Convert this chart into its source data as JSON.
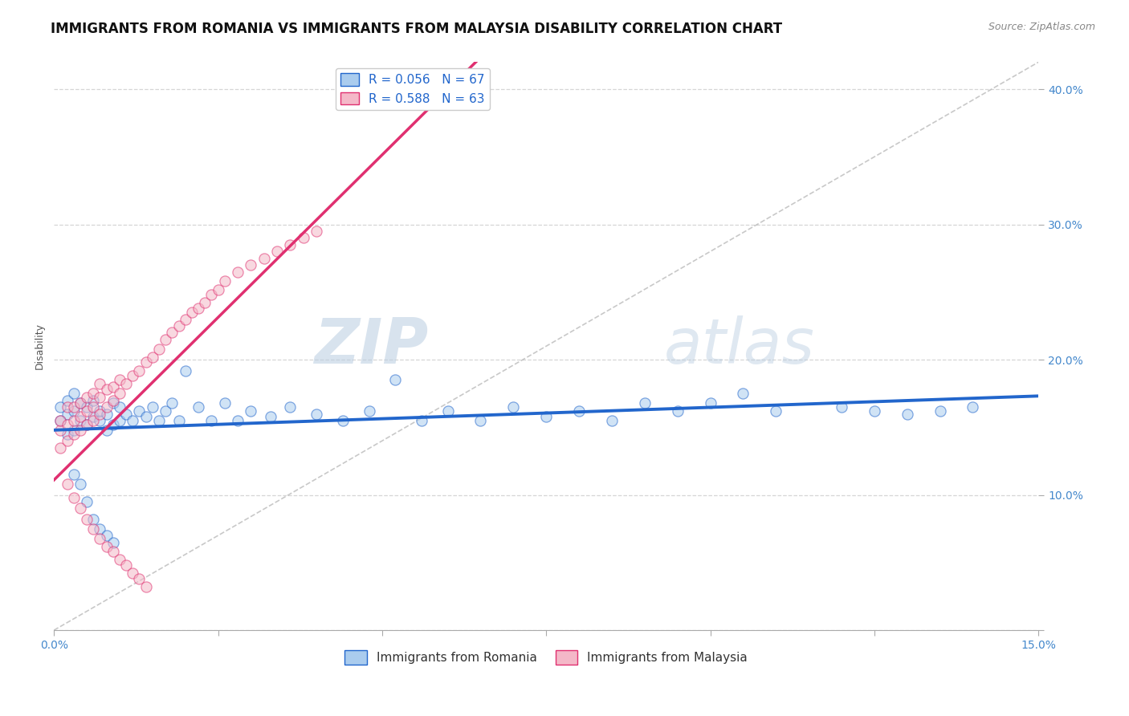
{
  "title": "IMMIGRANTS FROM ROMANIA VS IMMIGRANTS FROM MALAYSIA DISABILITY CORRELATION CHART",
  "source_text": "Source: ZipAtlas.com",
  "ylabel": "Disability",
  "legend_romania": "Immigrants from Romania",
  "legend_malaysia": "Immigrants from Malaysia",
  "r_romania": 0.056,
  "n_romania": 67,
  "r_malaysia": 0.588,
  "n_malaysia": 63,
  "color_romania": "#aaccee",
  "color_malaysia": "#f4b8c8",
  "line_color_romania": "#2266cc",
  "line_color_malaysia": "#e03070",
  "xlim": [
    0.0,
    0.15
  ],
  "ylim": [
    0.0,
    0.42
  ],
  "xticks": [
    0.0,
    0.025,
    0.05,
    0.075,
    0.1,
    0.125,
    0.15
  ],
  "xticklabels": [
    "0.0%",
    "",
    "",
    "",
    "",
    "",
    ""
  ],
  "yticks": [
    0.0,
    0.1,
    0.2,
    0.3,
    0.4
  ],
  "yticklabels": [
    "",
    "10.0%",
    "20.0%",
    "30.0%",
    "40.0%"
  ],
  "title_fontsize": 12,
  "axis_label_fontsize": 9,
  "tick_fontsize": 10,
  "legend_fontsize": 11,
  "watermark": "ZIPAtlas",
  "watermark_color": "#c5d8ea",
  "romania_x": [
    0.001,
    0.001,
    0.002,
    0.002,
    0.002,
    0.003,
    0.003,
    0.003,
    0.004,
    0.004,
    0.005,
    0.005,
    0.006,
    0.006,
    0.007,
    0.007,
    0.008,
    0.008,
    0.009,
    0.009,
    0.01,
    0.01,
    0.011,
    0.012,
    0.013,
    0.014,
    0.015,
    0.016,
    0.017,
    0.018,
    0.019,
    0.02,
    0.022,
    0.024,
    0.026,
    0.028,
    0.03,
    0.033,
    0.036,
    0.04,
    0.044,
    0.048,
    0.052,
    0.056,
    0.06,
    0.065,
    0.07,
    0.075,
    0.08,
    0.085,
    0.09,
    0.095,
    0.1,
    0.105,
    0.11,
    0.12,
    0.125,
    0.13,
    0.135,
    0.14,
    0.003,
    0.004,
    0.005,
    0.006,
    0.007,
    0.008,
    0.009
  ],
  "romania_y": [
    0.155,
    0.165,
    0.145,
    0.16,
    0.17,
    0.148,
    0.162,
    0.175,
    0.155,
    0.168,
    0.152,
    0.165,
    0.158,
    0.17,
    0.155,
    0.162,
    0.148,
    0.16,
    0.152,
    0.168,
    0.155,
    0.165,
    0.16,
    0.155,
    0.162,
    0.158,
    0.165,
    0.155,
    0.162,
    0.168,
    0.155,
    0.192,
    0.165,
    0.155,
    0.168,
    0.155,
    0.162,
    0.158,
    0.165,
    0.16,
    0.155,
    0.162,
    0.185,
    0.155,
    0.162,
    0.155,
    0.165,
    0.158,
    0.162,
    0.155,
    0.168,
    0.162,
    0.168,
    0.175,
    0.162,
    0.165,
    0.162,
    0.16,
    0.162,
    0.165,
    0.115,
    0.108,
    0.095,
    0.082,
    0.075,
    0.07,
    0.065
  ],
  "malaysia_x": [
    0.001,
    0.001,
    0.001,
    0.002,
    0.002,
    0.002,
    0.003,
    0.003,
    0.003,
    0.004,
    0.004,
    0.004,
    0.005,
    0.005,
    0.005,
    0.006,
    0.006,
    0.006,
    0.007,
    0.007,
    0.007,
    0.008,
    0.008,
    0.009,
    0.009,
    0.01,
    0.01,
    0.011,
    0.012,
    0.013,
    0.014,
    0.015,
    0.016,
    0.017,
    0.018,
    0.019,
    0.02,
    0.021,
    0.022,
    0.023,
    0.024,
    0.025,
    0.026,
    0.028,
    0.03,
    0.032,
    0.034,
    0.036,
    0.038,
    0.04,
    0.002,
    0.003,
    0.004,
    0.005,
    0.006,
    0.007,
    0.008,
    0.009,
    0.01,
    0.011,
    0.012,
    0.013,
    0.014
  ],
  "malaysia_y": [
    0.135,
    0.148,
    0.155,
    0.14,
    0.152,
    0.165,
    0.145,
    0.155,
    0.165,
    0.148,
    0.158,
    0.168,
    0.152,
    0.162,
    0.172,
    0.155,
    0.165,
    0.175,
    0.16,
    0.172,
    0.182,
    0.165,
    0.178,
    0.17,
    0.18,
    0.175,
    0.185,
    0.182,
    0.188,
    0.192,
    0.198,
    0.202,
    0.208,
    0.215,
    0.22,
    0.225,
    0.23,
    0.235,
    0.238,
    0.242,
    0.248,
    0.252,
    0.258,
    0.265,
    0.27,
    0.275,
    0.28,
    0.285,
    0.29,
    0.295,
    0.108,
    0.098,
    0.09,
    0.082,
    0.075,
    0.068,
    0.062,
    0.058,
    0.052,
    0.048,
    0.042,
    0.038,
    0.032
  ]
}
